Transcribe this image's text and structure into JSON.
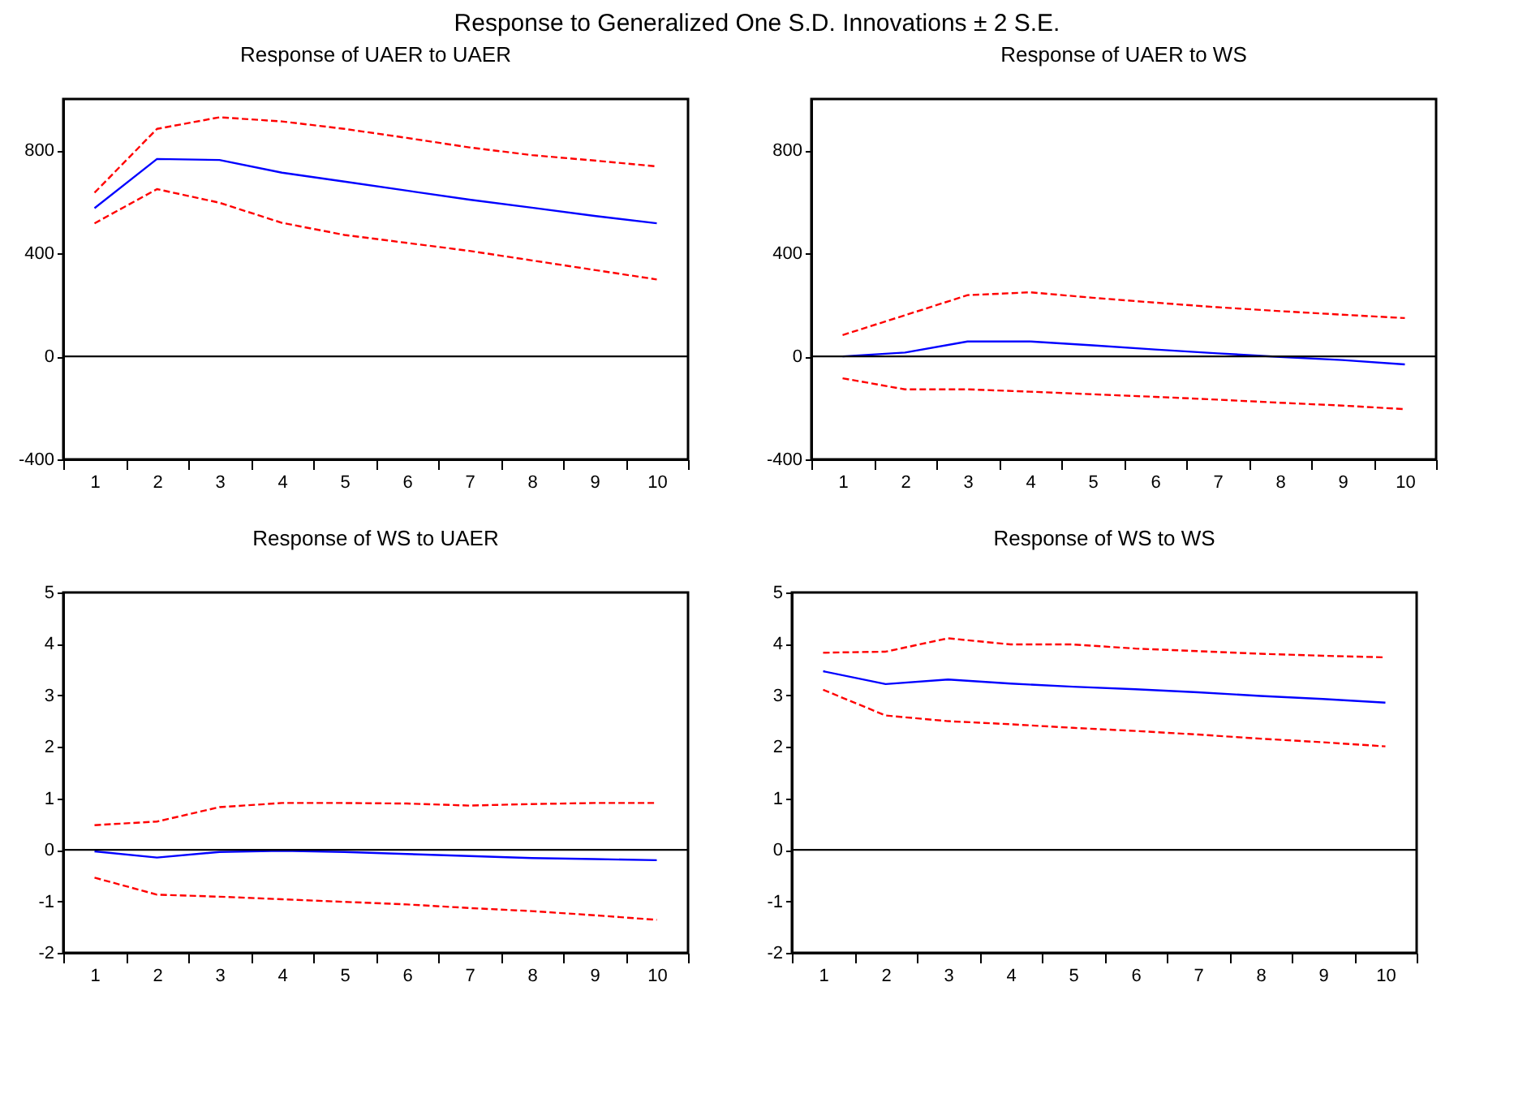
{
  "chart_data": [
    {
      "type": "line",
      "title": "Response of UAER to UAER",
      "annotations": [
        "Response to Generalized One S.D. Innovations ± 2 S.E."
      ],
      "categories": [
        "1",
        "2",
        "3",
        "4",
        "5",
        "6",
        "7",
        "8",
        "9",
        "10"
      ],
      "ylim": [
        -400,
        1000
      ],
      "yticks": [
        -400,
        0,
        400,
        800
      ],
      "grid": false,
      "series": [
        {
          "color": "#0000ff",
          "line_style": "solid",
          "values": [
            576,
            767,
            763,
            714,
            679,
            644,
            609,
            578,
            546,
            517
          ]
        },
        {
          "color": "#ff0000",
          "line_style": "dashed",
          "values": [
            636,
            884,
            929,
            913,
            884,
            849,
            812,
            782,
            761,
            738
          ]
        },
        {
          "color": "#ff0000",
          "line_style": "dashed",
          "values": [
            517,
            650,
            597,
            519,
            472,
            441,
            410,
            373,
            336,
            299
          ]
        }
      ],
      "ref_lines": [
        {
          "axis": "y",
          "value": 0,
          "color": "#000000"
        }
      ]
    },
    {
      "type": "line",
      "title": "Response of UAER to WS",
      "categories": [
        "1",
        "2",
        "3",
        "4",
        "5",
        "6",
        "7",
        "8",
        "9",
        "10"
      ],
      "ylim": [
        -400,
        1000
      ],
      "yticks": [
        -400,
        0,
        400,
        800
      ],
      "grid": false,
      "series": [
        {
          "color": "#0000ff",
          "line_style": "solid",
          "values": [
            0,
            15,
            58,
            58,
            43,
            27,
            12,
            -2,
            -14,
            -31
          ]
        },
        {
          "color": "#ff0000",
          "line_style": "dashed",
          "values": [
            83,
            160,
            238,
            249,
            228,
            209,
            191,
            176,
            162,
            149
          ]
        },
        {
          "color": "#ff0000",
          "line_style": "dashed",
          "values": [
            -85,
            -128,
            -128,
            -137,
            -147,
            -157,
            -168,
            -180,
            -191,
            -205
          ]
        }
      ],
      "ref_lines": [
        {
          "axis": "y",
          "value": 0,
          "color": "#000000"
        }
      ]
    },
    {
      "type": "line",
      "title": "Response of WS to UAER",
      "categories": [
        "1",
        "2",
        "3",
        "4",
        "5",
        "6",
        "7",
        "8",
        "9",
        "10"
      ],
      "ylim": [
        -2,
        5
      ],
      "yticks": [
        -2,
        -1,
        0,
        1,
        2,
        3,
        4,
        5
      ],
      "grid": false,
      "series": [
        {
          "color": "#0000ff",
          "line_style": "solid",
          "values": [
            -0.03,
            -0.15,
            -0.04,
            -0.02,
            -0.04,
            -0.08,
            -0.12,
            -0.16,
            -0.18,
            -0.2
          ]
        },
        {
          "color": "#ff0000",
          "line_style": "dashed",
          "values": [
            0.48,
            0.55,
            0.83,
            0.91,
            0.91,
            0.9,
            0.86,
            0.89,
            0.91,
            0.91
          ]
        },
        {
          "color": "#ff0000",
          "line_style": "dashed",
          "values": [
            -0.54,
            -0.87,
            -0.91,
            -0.96,
            -1.01,
            -1.06,
            -1.13,
            -1.19,
            -1.27,
            -1.36
          ]
        }
      ],
      "ref_lines": [
        {
          "axis": "y",
          "value": 0,
          "color": "#000000"
        }
      ]
    },
    {
      "type": "line",
      "title": "Response of WS to WS",
      "categories": [
        "1",
        "2",
        "3",
        "4",
        "5",
        "6",
        "7",
        "8",
        "9",
        "10"
      ],
      "ylim": [
        -2,
        5
      ],
      "yticks": [
        -2,
        -1,
        0,
        1,
        2,
        3,
        4,
        5
      ],
      "grid": false,
      "series": [
        {
          "color": "#0000ff",
          "line_style": "solid",
          "values": [
            3.47,
            3.22,
            3.31,
            3.23,
            3.17,
            3.12,
            3.06,
            2.99,
            2.93,
            2.86
          ]
        },
        {
          "color": "#ff0000",
          "line_style": "dashed",
          "values": [
            3.83,
            3.85,
            4.11,
            3.99,
            3.99,
            3.91,
            3.86,
            3.81,
            3.77,
            3.74
          ]
        },
        {
          "color": "#ff0000",
          "line_style": "dashed",
          "values": [
            3.11,
            2.61,
            2.5,
            2.44,
            2.37,
            2.31,
            2.24,
            2.16,
            2.09,
            2.01
          ]
        }
      ],
      "ref_lines": [
        {
          "axis": "y",
          "value": 0,
          "color": "#000000"
        }
      ]
    }
  ]
}
